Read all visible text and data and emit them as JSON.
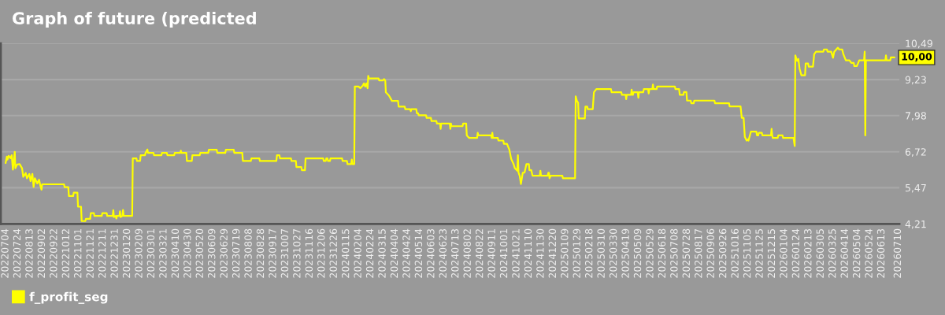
{
  "chart_data": {
    "type": "line",
    "title": "Graph of future (predicted",
    "x": [
      "2022-07-04",
      "2022-07-06",
      "2022-07-07",
      "2022-07-09",
      "2022-07-12",
      "2022-07-14",
      "2022-07-16",
      "2022-07-19",
      "2022-07-20",
      "2022-07-23",
      "2022-07-27",
      "2022-07-31",
      "2022-08-02",
      "2022-08-06",
      "2022-08-08",
      "2022-08-12",
      "2022-08-14",
      "2022-08-17",
      "2022-08-19",
      "2022-08-21",
      "2022-08-25",
      "2022-08-28",
      "2022-08-30",
      "2022-09-01",
      "2022-09-02",
      "2022-10-08",
      "2022-10-09",
      "2022-10-15",
      "2022-10-16",
      "2022-10-23",
      "2022-10-24",
      "2022-10-30",
      "2022-10-31",
      "2022-11-05",
      "2022-11-06",
      "2022-11-12",
      "2022-11-13",
      "2022-11-20",
      "2022-11-21",
      "2022-11-26",
      "2022-11-27",
      "2022-12-09",
      "2022-12-10",
      "2022-12-17",
      "2022-12-18",
      "2022-12-27",
      "2022-12-28",
      "2022-12-29",
      "2023-01-01",
      "2023-01-02",
      "2023-01-03",
      "2023-01-07",
      "2023-01-08",
      "2023-01-09",
      "2023-01-12",
      "2023-01-13",
      "2023-01-14",
      "2023-01-28",
      "2023-01-29",
      "2023-02-04",
      "2023-02-05",
      "2023-02-10",
      "2023-02-11",
      "2023-02-18",
      "2023-02-19",
      "2023-02-22",
      "2023-02-23",
      "2023-03-04",
      "2023-03-05",
      "2023-03-17",
      "2023-03-18",
      "2023-03-26",
      "2023-03-27",
      "2023-04-07",
      "2023-04-08",
      "2023-04-17",
      "2023-04-18",
      "2023-04-19",
      "2023-04-27",
      "2023-04-28",
      "2023-05-06",
      "2023-05-07",
      "2023-05-19",
      "2023-05-20",
      "2023-06-02",
      "2023-06-03",
      "2023-06-16",
      "2023-06-17",
      "2023-06-30",
      "2023-07-01",
      "2023-07-14",
      "2023-07-15",
      "2023-07-28",
      "2023-07-29",
      "2023-08-11",
      "2023-08-12",
      "2023-08-25",
      "2023-08-26",
      "2023-09-22",
      "2023-09-23",
      "2023-09-27",
      "2023-09-28",
      "2023-10-16",
      "2023-10-17",
      "2023-10-24",
      "2023-10-25",
      "2023-11-02",
      "2023-11-03",
      "2023-11-08",
      "2023-11-09",
      "2023-12-08",
      "2023-12-09",
      "2023-12-12",
      "2023-12-13",
      "2023-12-15",
      "2023-12-16",
      "2023-12-19",
      "2023-12-20",
      "2024-01-08",
      "2024-01-09",
      "2024-01-16",
      "2024-01-17",
      "2024-01-23",
      "2024-01-24",
      "2024-01-25",
      "2024-01-28",
      "2024-01-29",
      "2024-02-04",
      "2024-02-07",
      "2024-02-11",
      "2024-02-13",
      "2024-02-15",
      "2024-02-17",
      "2024-02-19",
      "2024-02-20",
      "2024-02-21",
      "2024-03-08",
      "2024-03-09",
      "2024-03-15",
      "2024-03-17",
      "2024-03-19",
      "2024-03-20",
      "2024-03-25",
      "2024-03-30",
      "2024-04-09",
      "2024-04-10",
      "2024-04-20",
      "2024-04-21",
      "2024-04-29",
      "2024-04-30",
      "2024-05-01",
      "2024-05-09",
      "2024-05-10",
      "2024-05-12",
      "2024-05-13",
      "2024-05-25",
      "2024-05-26",
      "2024-06-02",
      "2024-06-03",
      "2024-06-11",
      "2024-06-12",
      "2024-06-17",
      "2024-06-18",
      "2024-06-19",
      "2024-07-03",
      "2024-07-04",
      "2024-07-05",
      "2024-07-06",
      "2024-07-24",
      "2024-07-25",
      "2024-07-30",
      "2024-07-31",
      "2024-08-04",
      "2024-08-17",
      "2024-08-18",
      "2024-08-19",
      "2024-09-09",
      "2024-09-10",
      "2024-09-11",
      "2024-09-12",
      "2024-09-20",
      "2024-09-21",
      "2024-09-29",
      "2024-09-30",
      "2024-10-05",
      "2024-10-09",
      "2024-10-12",
      "2024-10-16",
      "2024-10-18",
      "2024-10-22",
      "2024-10-23",
      "2024-10-24",
      "2024-10-26",
      "2024-10-28",
      "2024-10-31",
      "2024-11-03",
      "2024-11-06",
      "2024-11-10",
      "2024-11-11",
      "2024-11-14",
      "2024-11-16",
      "2024-11-28",
      "2024-11-29",
      "2024-11-30",
      "2024-12-11",
      "2024-12-12",
      "2024-12-13",
      "2024-12-14",
      "2024-12-16",
      "2025-01-04",
      "2025-01-05",
      "2025-01-25",
      "2025-01-26",
      "2025-01-28",
      "2025-01-30",
      "2025-01-31",
      "2025-02-10",
      "2025-02-11",
      "2025-02-14",
      "2025-02-15",
      "2025-02-23",
      "2025-02-25",
      "2025-03-01",
      "2025-03-25",
      "2025-03-26",
      "2025-04-11",
      "2025-04-12",
      "2025-04-18",
      "2025-04-19",
      "2025-04-20",
      "2025-04-27",
      "2025-04-28",
      "2025-04-29",
      "2025-04-30",
      "2025-05-01",
      "2025-05-08",
      "2025-05-09",
      "2025-05-10",
      "2025-05-17",
      "2025-05-18",
      "2025-05-25",
      "2025-05-26",
      "2025-05-27",
      "2025-06-01",
      "2025-06-02",
      "2025-06-03",
      "2025-06-08",
      "2025-06-09",
      "2025-07-08",
      "2025-07-09",
      "2025-07-15",
      "2025-07-16",
      "2025-07-22",
      "2025-07-23",
      "2025-07-27",
      "2025-07-28",
      "2025-08-03",
      "2025-08-04",
      "2025-08-08",
      "2025-08-09",
      "2025-09-11",
      "2025-09-12",
      "2025-10-05",
      "2025-10-06",
      "2025-10-24",
      "2025-10-26",
      "2025-10-29",
      "2025-10-31",
      "2025-11-03",
      "2025-11-05",
      "2025-11-06",
      "2025-11-10",
      "2025-11-19",
      "2025-11-20",
      "2025-11-22",
      "2025-11-23",
      "2025-11-28",
      "2025-11-29",
      "2025-12-13",
      "2025-12-14",
      "2025-12-15",
      "2025-12-16",
      "2025-12-24",
      "2025-12-25",
      "2026-01-01",
      "2026-01-02",
      "2026-01-19",
      "2026-01-21",
      "2026-01-22",
      "2026-01-25",
      "2026-01-27",
      "2026-01-29",
      "2026-02-01",
      "2026-02-07",
      "2026-02-08",
      "2026-02-12",
      "2026-02-13",
      "2026-02-20",
      "2026-02-22",
      "2026-02-25",
      "2026-03-09",
      "2026-03-10",
      "2026-03-15",
      "2026-03-16",
      "2026-03-22",
      "2026-03-25",
      "2026-03-27",
      "2026-04-02",
      "2026-04-04",
      "2026-04-09",
      "2026-04-11",
      "2026-04-15",
      "2026-04-21",
      "2026-04-24",
      "2026-04-28",
      "2026-04-29",
      "2026-05-03",
      "2026-05-05",
      "2026-05-07",
      "2026-05-15",
      "2026-05-16",
      "2026-05-17",
      "2026-05-18",
      "2026-06-19",
      "2026-06-20",
      "2026-06-21",
      "2026-06-27",
      "2026-06-28",
      "2026-07-04"
    ],
    "series": [
      {
        "name": "f_profit_seg",
        "color": "#ffff00",
        "values": [
          6.33,
          6.55,
          6.45,
          6.58,
          6.5,
          6.6,
          6.1,
          6.72,
          6.15,
          6.28,
          6.29,
          6.15,
          5.85,
          5.98,
          5.8,
          5.95,
          5.7,
          5.95,
          5.5,
          5.8,
          5.62,
          5.75,
          5.55,
          5.4,
          5.59,
          5.59,
          5.49,
          5.49,
          5.18,
          5.18,
          5.3,
          5.3,
          4.81,
          4.81,
          4.31,
          4.31,
          4.39,
          4.39,
          4.59,
          4.59,
          4.49,
          4.49,
          4.59,
          4.59,
          4.49,
          4.49,
          4.69,
          4.45,
          4.49,
          4.4,
          4.49,
          4.49,
          4.65,
          4.45,
          4.49,
          4.7,
          4.49,
          4.49,
          6.49,
          6.49,
          6.4,
          6.4,
          6.6,
          6.6,
          6.68,
          6.8,
          6.68,
          6.68,
          6.6,
          6.6,
          6.68,
          6.68,
          6.6,
          6.6,
          6.68,
          6.68,
          6.76,
          6.68,
          6.68,
          6.4,
          6.4,
          6.6,
          6.6,
          6.68,
          6.68,
          6.79,
          6.79,
          6.68,
          6.68,
          6.79,
          6.79,
          6.68,
          6.68,
          6.4,
          6.4,
          6.49,
          6.49,
          6.4,
          6.4,
          6.6,
          6.6,
          6.49,
          6.49,
          6.4,
          6.4,
          6.19,
          6.19,
          6.08,
          6.08,
          6.49,
          6.49,
          6.4,
          6.4,
          6.49,
          6.49,
          6.4,
          6.4,
          6.49,
          6.49,
          6.4,
          6.4,
          6.29,
          6.29,
          6.45,
          6.29,
          6.29,
          8.99,
          8.99,
          8.93,
          9.02,
          9.1,
          8.99,
          9.1,
          8.93,
          9.36,
          9.27,
          9.27,
          9.2,
          9.2,
          9.25,
          9.2,
          8.79,
          8.68,
          8.49,
          8.49,
          8.29,
          8.29,
          8.2,
          8.2,
          8.13,
          8.2,
          8.2,
          8.06,
          8.06,
          7.99,
          7.99,
          7.9,
          7.9,
          7.79,
          7.79,
          7.7,
          7.7,
          7.52,
          7.7,
          7.7,
          7.52,
          7.7,
          7.61,
          7.61,
          7.7,
          7.7,
          7.29,
          7.2,
          7.2,
          7.38,
          7.29,
          7.29,
          7.2,
          7.38,
          7.2,
          7.2,
          7.11,
          7.11,
          7.0,
          7.0,
          6.79,
          6.47,
          6.29,
          6.15,
          6.06,
          6.6,
          6.0,
          5.88,
          5.6,
          5.99,
          6.0,
          6.29,
          6.29,
          6.08,
          6.08,
          5.89,
          5.89,
          6.06,
          5.89,
          5.89,
          5.99,
          5.99,
          5.8,
          5.89,
          5.89,
          5.8,
          5.8,
          8.65,
          8.49,
          8.43,
          7.88,
          7.88,
          8.29,
          8.29,
          8.2,
          8.2,
          8.79,
          8.9,
          8.9,
          8.79,
          8.79,
          8.7,
          8.7,
          8.55,
          8.7,
          8.7,
          8.88,
          8.7,
          8.7,
          8.79,
          8.79,
          8.6,
          8.79,
          8.79,
          8.9,
          8.9,
          8.75,
          8.9,
          8.9,
          9.06,
          8.9,
          8.9,
          8.99,
          8.99,
          8.9,
          8.9,
          8.7,
          8.7,
          8.8,
          8.8,
          8.5,
          8.5,
          8.41,
          8.41,
          8.5,
          8.5,
          8.41,
          8.41,
          8.3,
          8.3,
          7.9,
          7.9,
          7.24,
          7.11,
          7.15,
          7.11,
          7.42,
          7.42,
          7.29,
          7.29,
          7.38,
          7.38,
          7.29,
          7.29,
          7.52,
          7.29,
          7.2,
          7.2,
          7.29,
          7.29,
          7.2,
          7.2,
          6.92,
          10.07,
          9.88,
          9.95,
          9.61,
          9.38,
          9.38,
          9.79,
          9.79,
          9.68,
          9.68,
          10.11,
          10.2,
          10.2,
          10.28,
          10.28,
          10.2,
          10.2,
          9.99,
          10.2,
          10.34,
          10.28,
          10.28,
          10.11,
          9.9,
          9.9,
          9.81,
          9.81,
          9.7,
          9.7,
          9.79,
          9.9,
          9.9,
          10.2,
          7.29,
          9.9,
          9.9,
          10.07,
          9.9,
          9.9,
          10.0,
          10.0
        ]
      }
    ],
    "xlim": [
      "2022-06-26",
      "2026-07-12"
    ],
    "xticks": [
      {
        "value": "2022-07-04",
        "label": "20220704"
      },
      {
        "value": "2022-07-24",
        "label": "20220724"
      },
      {
        "value": "2022-08-13",
        "label": "20220813"
      },
      {
        "value": "2022-09-02",
        "label": "20220902"
      },
      {
        "value": "2022-09-22",
        "label": "20220922"
      },
      {
        "value": "2022-10-12",
        "label": "20221012"
      },
      {
        "value": "2022-11-01",
        "label": "20221101"
      },
      {
        "value": "2022-11-21",
        "label": "20221121"
      },
      {
        "value": "2022-12-11",
        "label": "20221211"
      },
      {
        "value": "2022-12-31",
        "label": "20221231"
      },
      {
        "value": "2023-01-20",
        "label": "20230120"
      },
      {
        "value": "2023-02-09",
        "label": "20230209"
      },
      {
        "value": "2023-03-01",
        "label": "20230301"
      },
      {
        "value": "2023-03-21",
        "label": "20230321"
      },
      {
        "value": "2023-04-10",
        "label": "20230410"
      },
      {
        "value": "2023-04-30",
        "label": "20230430"
      },
      {
        "value": "2023-05-20",
        "label": "20230520"
      },
      {
        "value": "2023-06-09",
        "label": "20230609"
      },
      {
        "value": "2023-06-29",
        "label": "20230629"
      },
      {
        "value": "2023-07-19",
        "label": "20230719"
      },
      {
        "value": "2023-08-08",
        "label": "20230808"
      },
      {
        "value": "2023-08-28",
        "label": "20230828"
      },
      {
        "value": "2023-09-17",
        "label": "20230917"
      },
      {
        "value": "2023-10-07",
        "label": "20231007"
      },
      {
        "value": "2023-10-27",
        "label": "20231027"
      },
      {
        "value": "2023-11-16",
        "label": "20231116"
      },
      {
        "value": "2023-12-06",
        "label": "20231206"
      },
      {
        "value": "2023-12-26",
        "label": "20231226"
      },
      {
        "value": "2024-01-15",
        "label": "20240115"
      },
      {
        "value": "2024-02-04",
        "label": "20240204"
      },
      {
        "value": "2024-02-24",
        "label": "20240224"
      },
      {
        "value": "2024-03-15",
        "label": "20240315"
      },
      {
        "value": "2024-04-04",
        "label": "20240404"
      },
      {
        "value": "2024-04-24",
        "label": "20240424"
      },
      {
        "value": "2024-05-14",
        "label": "20240514"
      },
      {
        "value": "2024-06-03",
        "label": "20240603"
      },
      {
        "value": "2024-06-23",
        "label": "20240623"
      },
      {
        "value": "2024-07-13",
        "label": "20240713"
      },
      {
        "value": "2024-08-02",
        "label": "20240802"
      },
      {
        "value": "2024-08-22",
        "label": "20240822"
      },
      {
        "value": "2024-09-11",
        "label": "20240911"
      },
      {
        "value": "2024-10-01",
        "label": "20241001"
      },
      {
        "value": "2024-10-21",
        "label": "20241021"
      },
      {
        "value": "2024-11-10",
        "label": "20241110"
      },
      {
        "value": "2024-11-30",
        "label": "20241130"
      },
      {
        "value": "2024-12-20",
        "label": "20241220"
      },
      {
        "value": "2025-01-09",
        "label": "20250109"
      },
      {
        "value": "2025-01-29",
        "label": "20250129"
      },
      {
        "value": "2025-02-18",
        "label": "20250218"
      },
      {
        "value": "2025-03-10",
        "label": "20250310"
      },
      {
        "value": "2025-03-30",
        "label": "20250330"
      },
      {
        "value": "2025-04-19",
        "label": "20250419"
      },
      {
        "value": "2025-05-09",
        "label": "20250509"
      },
      {
        "value": "2025-05-29",
        "label": "20250529"
      },
      {
        "value": "2025-06-18",
        "label": "20250618"
      },
      {
        "value": "2025-07-08",
        "label": "20250708"
      },
      {
        "value": "2025-07-28",
        "label": "20250728"
      },
      {
        "value": "2025-08-17",
        "label": "20250817"
      },
      {
        "value": "2025-09-06",
        "label": "20250906"
      },
      {
        "value": "2025-09-26",
        "label": "20250926"
      },
      {
        "value": "2025-10-16",
        "label": "20251016"
      },
      {
        "value": "2025-11-05",
        "label": "20251105"
      },
      {
        "value": "2025-11-25",
        "label": "20251125"
      },
      {
        "value": "2025-12-15",
        "label": "20251215"
      },
      {
        "value": "2026-01-04",
        "label": "20260104"
      },
      {
        "value": "2026-01-24",
        "label": "20260124"
      },
      {
        "value": "2026-02-13",
        "label": "20260213"
      },
      {
        "value": "2026-03-05",
        "label": "20260305"
      },
      {
        "value": "2026-03-25",
        "label": "20260325"
      },
      {
        "value": "2026-04-14",
        "label": "20260414"
      },
      {
        "value": "2026-05-04",
        "label": "20260504"
      },
      {
        "value": "2026-05-24",
        "label": "20260524"
      },
      {
        "value": "2026-06-13",
        "label": "20260613"
      },
      {
        "value": "2026-07-10",
        "label": "20260710"
      }
    ],
    "ylim": [
      4.21,
      10.49
    ],
    "yticks": [
      {
        "value": 4.21,
        "label": "4,21"
      },
      {
        "value": 5.47,
        "label": "5,47"
      },
      {
        "value": 6.72,
        "label": "6,72"
      },
      {
        "value": 7.98,
        "label": "7,98"
      },
      {
        "value": 9.23,
        "label": "9,23"
      },
      {
        "value": 10.49,
        "label": "10,49"
      }
    ],
    "grid": "y",
    "legend": "bottom left",
    "annotations": [
      {
        "text": "10,00",
        "x": "2026-07-04",
        "y": 10.0
      }
    ]
  }
}
